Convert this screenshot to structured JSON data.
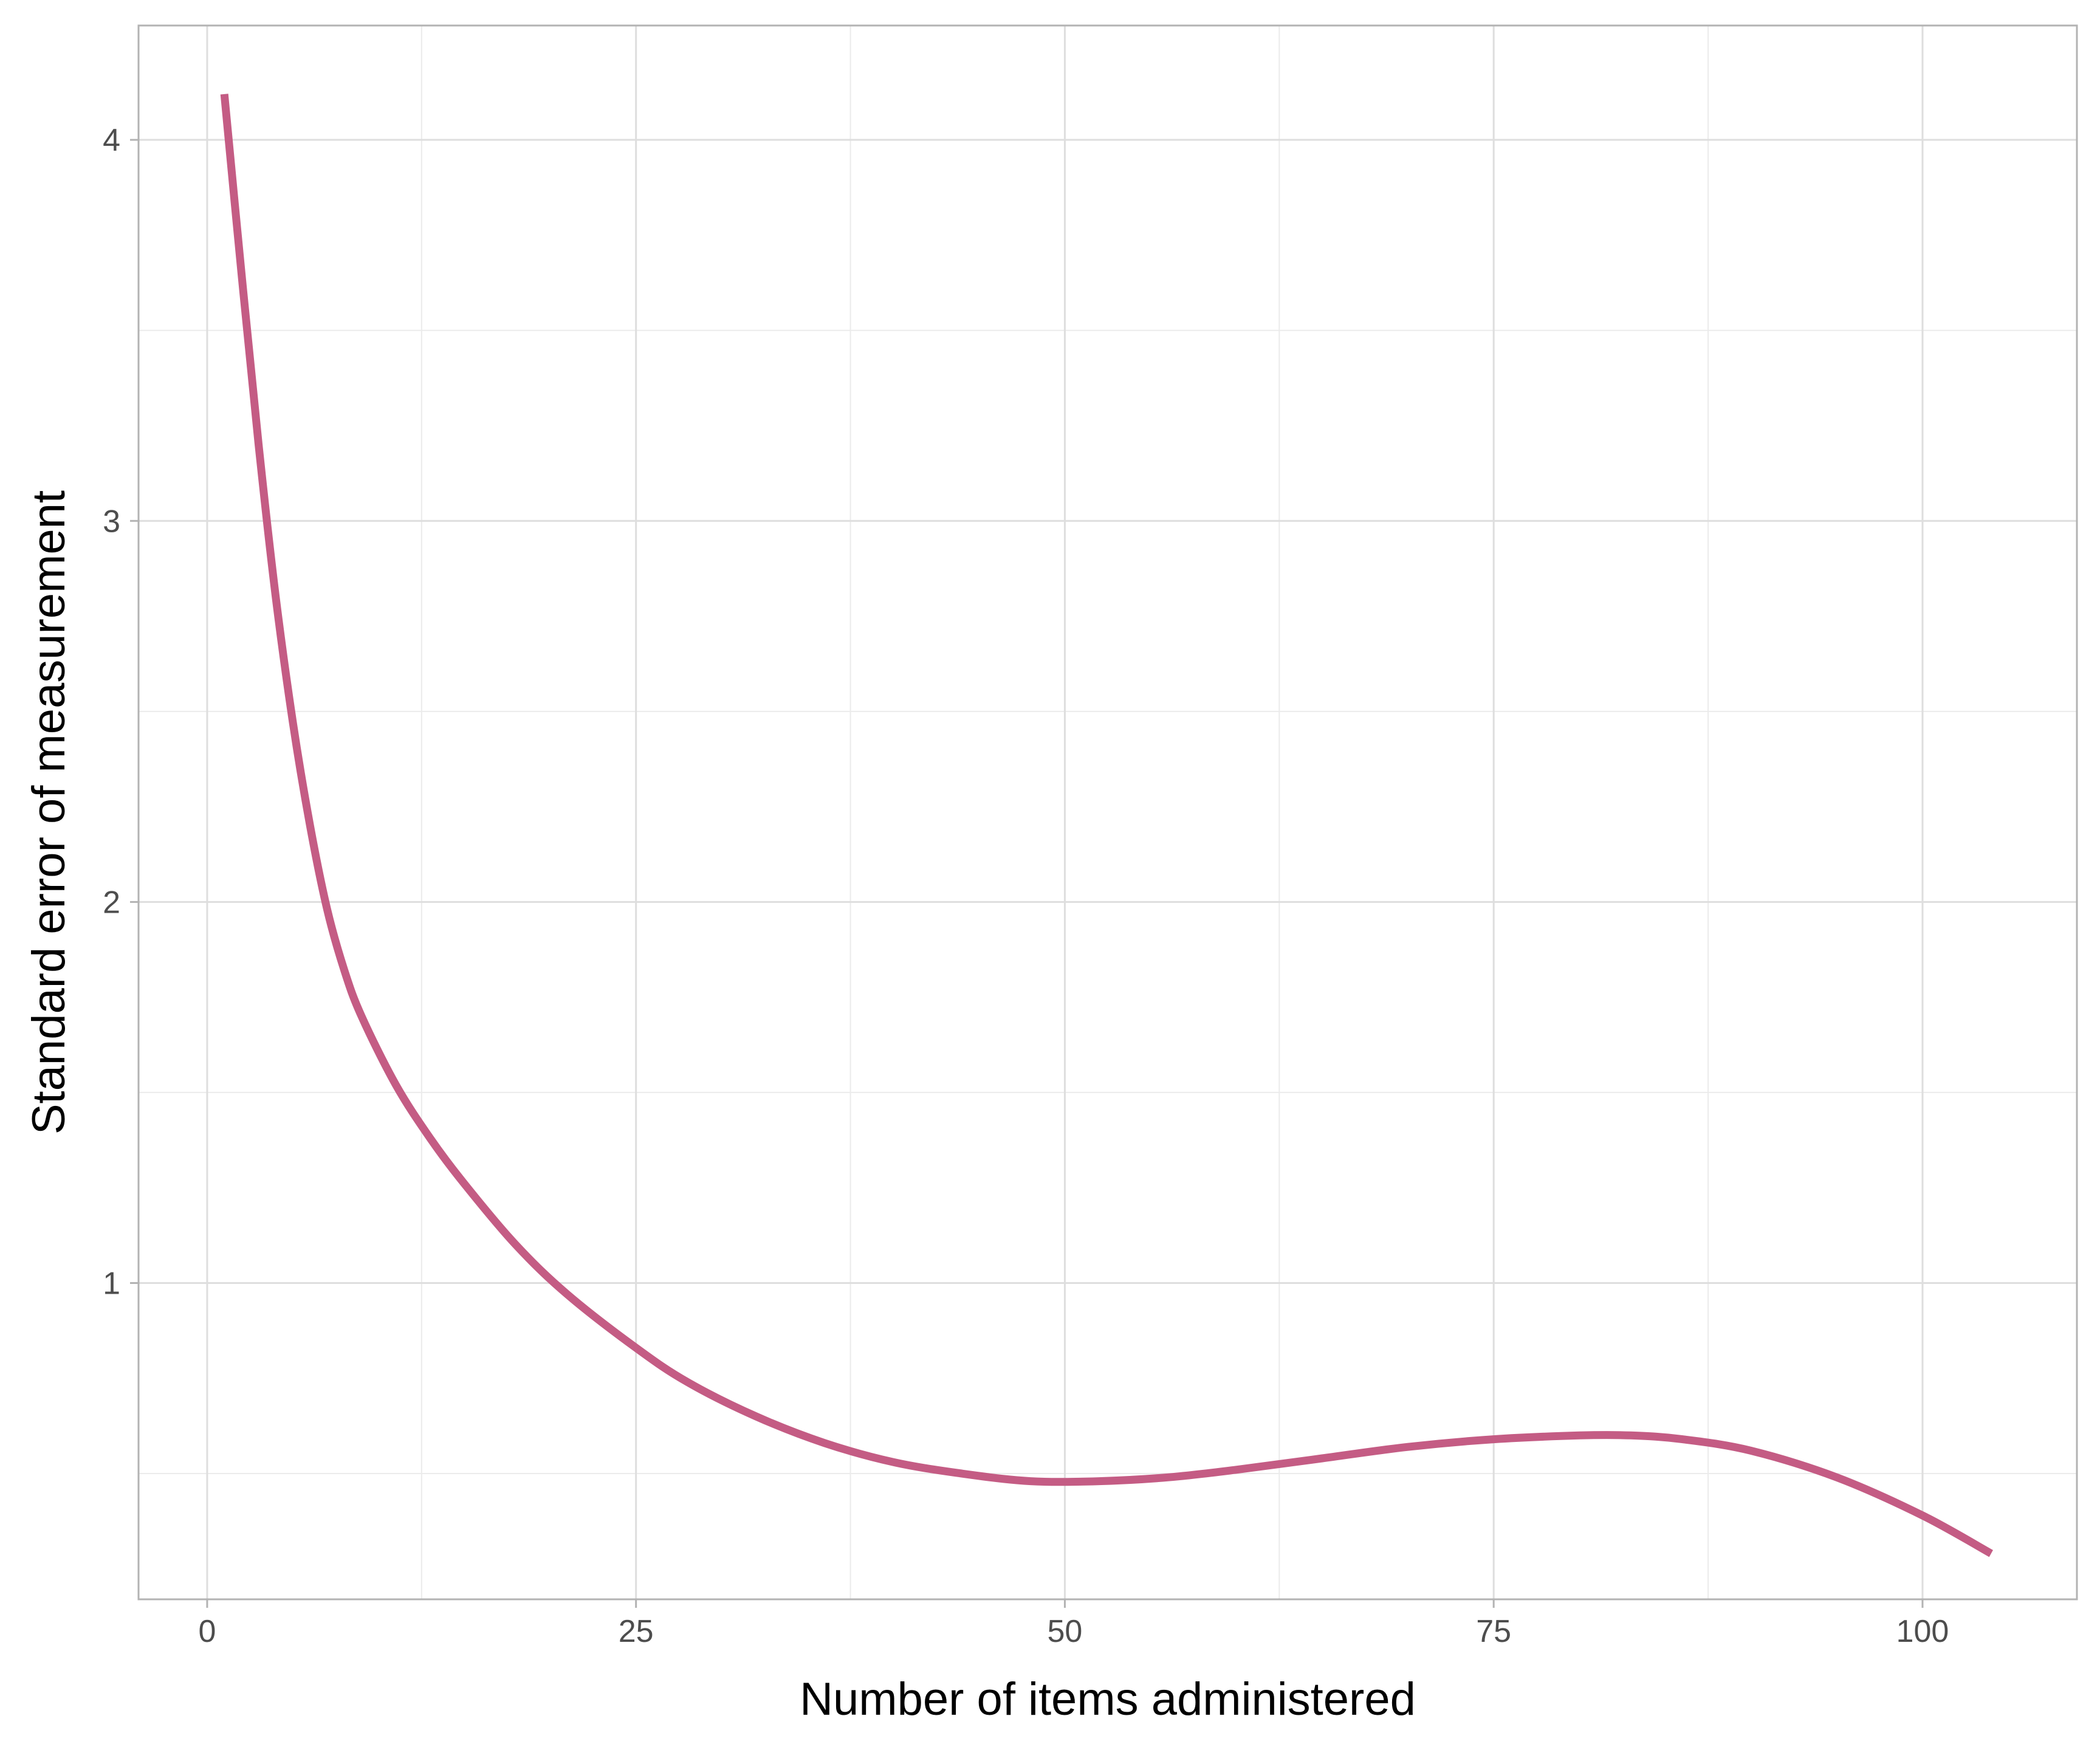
{
  "chart_data": {
    "type": "line",
    "title": "",
    "xlabel": "Number of items administered",
    "ylabel": "Standard error of measurement",
    "xlim": [
      -4,
      109
    ],
    "ylim": [
      0.17,
      4.3
    ],
    "x_ticks": [
      0,
      25,
      50,
      75,
      100
    ],
    "x_tick_labels": [
      "0",
      "25",
      "50",
      "75",
      "100"
    ],
    "y_ticks": [
      1,
      2,
      3,
      4
    ],
    "y_tick_labels": [
      "1",
      "2",
      "3",
      "4"
    ],
    "grid": true,
    "line_color": "#c45c84",
    "series": [
      {
        "x": [
          1,
          2,
          3,
          4,
          5,
          6,
          7,
          8,
          9,
          11,
          13,
          15,
          18,
          21,
          25,
          28,
          32,
          36,
          40,
          44,
          48,
          52,
          56,
          60,
          65,
          70,
          75,
          80,
          83,
          86,
          90,
          95,
          100,
          104
        ],
        "values": [
          4.12,
          3.65,
          3.2,
          2.8,
          2.47,
          2.2,
          1.98,
          1.82,
          1.7,
          1.52,
          1.38,
          1.26,
          1.1,
          0.97,
          0.83,
          0.74,
          0.65,
          0.58,
          0.53,
          0.5,
          0.48,
          0.48,
          0.49,
          0.51,
          0.54,
          0.57,
          0.59,
          0.6,
          0.6,
          0.59,
          0.56,
          0.49,
          0.39,
          0.29
        ]
      }
    ]
  }
}
